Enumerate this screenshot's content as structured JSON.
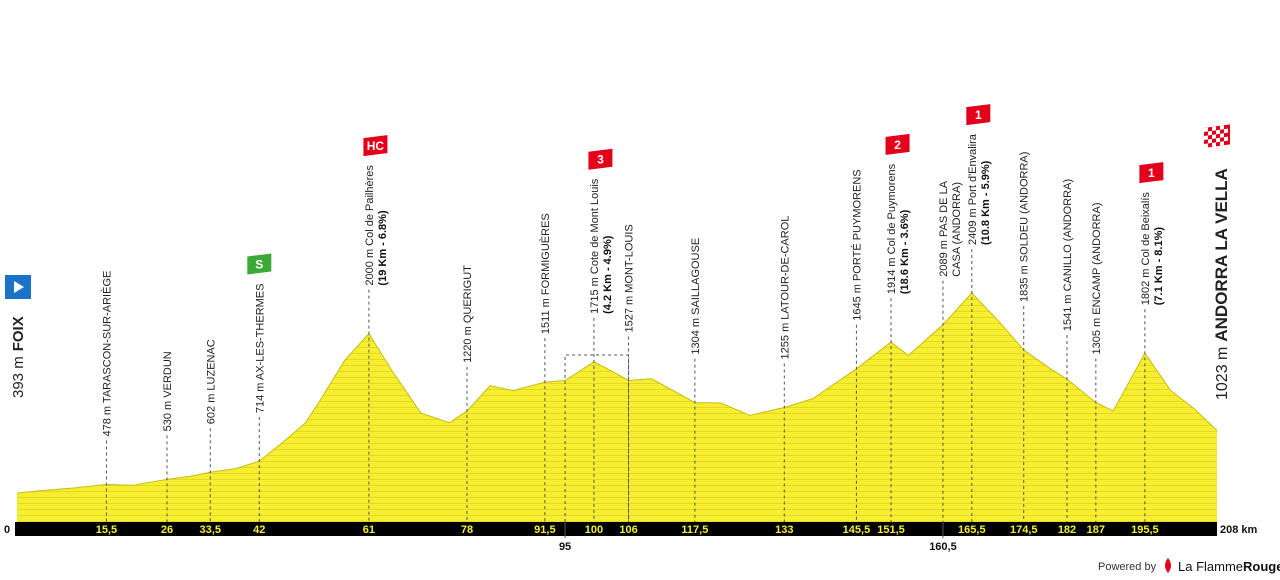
{
  "chart_data": {
    "type": "area",
    "color": "#f7ee2f",
    "x": [
      0,
      5,
      10,
      15.5,
      20,
      26,
      30,
      33.5,
      38,
      42,
      46,
      50,
      52.5,
      56.8,
      61,
      65,
      70,
      75,
      78,
      82,
      86,
      91.5,
      95,
      100,
      103,
      106,
      110,
      117.5,
      122,
      127,
      133,
      138,
      145.5,
      151.5,
      154.5,
      160.5,
      165.5,
      170,
      174.5,
      179,
      182,
      187,
      190,
      195.5,
      200,
      204,
      208
    ],
    "values": [
      393,
      420,
      444,
      478,
      470,
      530,
      560,
      602,
      640,
      714,
      900,
      1100,
      1323,
      1730,
      2000,
      1625,
      1200,
      1100,
      1220,
      1475,
      1425,
      1511,
      1527,
      1715,
      1625,
      1527,
      1545,
      1304,
      1300,
      1175,
      1255,
      1345,
      1645,
      1914,
      1780,
      2089,
      2409,
      2135,
      1835,
      1650,
      1541,
      1305,
      1220,
      1802,
      1425,
      1245,
      1023
    ],
    "xlim": [
      0,
      208
    ],
    "ylim": [
      100,
      2500
    ],
    "xticks": [
      0,
      {
        "value": 15.5,
        "label": "15,5"
      },
      26,
      {
        "value": 33.5,
        "label": "33,5"
      },
      42,
      61,
      78,
      {
        "value": 91.5,
        "label": "91,5"
      },
      100,
      106,
      {
        "value": 117.5,
        "label": "117,5"
      },
      133,
      {
        "value": 145.5,
        "label": "145,5"
      },
      {
        "value": 151.5,
        "label": "151,5"
      },
      {
        "value": 165.5,
        "label": "165,5"
      },
      {
        "value": 174.5,
        "label": "174,5"
      },
      182,
      187,
      {
        "value": 195.5,
        "label": "195,5"
      },
      {
        "value": 208,
        "label": "208 km"
      }
    ],
    "xticks_lower": [
      95,
      {
        "value": 160.5,
        "label": "160,5"
      }
    ],
    "start": {
      "elevation_label": "393 m",
      "name": "FOIX"
    },
    "finish": {
      "elevation_label": "1023 m",
      "name": "ANDORRA LA VELLA"
    },
    "waypoints": [
      {
        "x": 15.5,
        "lines": [
          "478 m TARASCON-SUR-ARIÈGE"
        ]
      },
      {
        "x": 26,
        "lines": [
          "530 m VERDUN"
        ]
      },
      {
        "x": 33.5,
        "lines": [
          "602 m LUZENAC"
        ]
      },
      {
        "x": 42,
        "lines": [
          "714 m AX-LES-THERMES"
        ],
        "category": "S",
        "badge_color": "#3aa935"
      },
      {
        "x": 61,
        "lines": [
          "2000 m Col de Pailhères"
        ],
        "detail": "(19 Km - 6.8%)",
        "category": "HC",
        "badge_color": "#e2001a"
      },
      {
        "x": 78,
        "lines": [
          "1220 m QUERIGUT"
        ]
      },
      {
        "x": 91.5,
        "lines": [
          "1511 m FORMIGUÈRES"
        ]
      },
      {
        "x": 100,
        "lines": [
          "1715 m Cote de Mont Louis"
        ],
        "detail": "(4.2 Km - 4.9%)",
        "category": "3",
        "badge_color": "#e2001a"
      },
      {
        "x": 106,
        "lines": [
          "1527 m MONT-LOUIS"
        ]
      },
      {
        "x": 117.5,
        "lines": [
          "1304 m SAILLAGOUSE"
        ]
      },
      {
        "x": 133,
        "lines": [
          "1255 m LATOUR-DE-CAROL"
        ]
      },
      {
        "x": 145.5,
        "lines": [
          "1645 m PORTÉ PUYMORENS"
        ]
      },
      {
        "x": 151.5,
        "lines": [
          "1914 m Col de Puymorens"
        ],
        "detail": "(18.6 Km - 3.6%)",
        "category": "2",
        "badge_color": "#e2001a"
      },
      {
        "x": 160.5,
        "lines": [
          "2089 m PAS DE LA",
          "CASA (ANDORRA)"
        ]
      },
      {
        "x": 165.5,
        "lines": [
          "2409 m Port d'Envalira"
        ],
        "detail": "(10.8 Km - 5.9%)",
        "category": "1",
        "badge_color": "#e2001a"
      },
      {
        "x": 174.5,
        "lines": [
          "1835 m SOLDEU (ANDORRA)"
        ]
      },
      {
        "x": 182,
        "lines": [
          "1541 m CANILLO (ANDORRA)"
        ]
      },
      {
        "x": 187,
        "lines": [
          "1305 m ENCAMP (ANDORRA)"
        ]
      },
      {
        "x": 195.5,
        "lines": [
          "1802 m Col de Beixalís"
        ],
        "detail": "(7.1 Km - 8.1%)",
        "category": "1",
        "badge_color": "#e2001a"
      }
    ]
  },
  "footer": {
    "powered_by": "Powered by",
    "brand_light": "La Flamme",
    "brand_bold": "Rouge"
  }
}
